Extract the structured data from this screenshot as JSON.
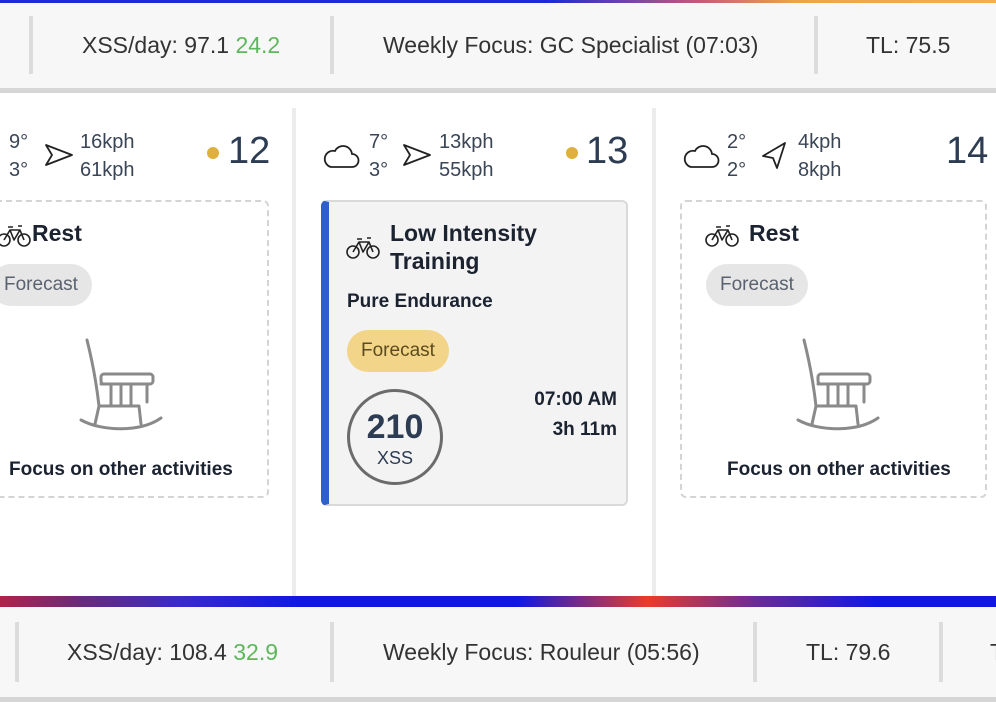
{
  "top_bar": {
    "xss_label": "XSS/day: 97.1",
    "xss_delta": "24.2",
    "weekly_focus": "Weekly Focus: GC Specialist (07:03)",
    "tl": "TL: 75.5"
  },
  "days": [
    {
      "temp_high": "9°",
      "temp_low": "3°",
      "wind_speed": "16kph",
      "wind_gust": "61kph",
      "day_number": "12",
      "card": {
        "type": "rest",
        "title": "Rest",
        "badge": "Forecast",
        "message": "Focus on other activities"
      }
    },
    {
      "temp_high": "7°",
      "temp_low": "3°",
      "wind_speed": "13kph",
      "wind_gust": "55kph",
      "day_number": "13",
      "card": {
        "type": "workout",
        "title_line1": "Low Intensity",
        "title_line2": "Training",
        "subtitle": "Pure Endurance",
        "badge": "Forecast",
        "xss_value": "210",
        "xss_unit": "XSS",
        "start_time": "07:00 AM",
        "duration": "3h 11m",
        "accent_color": "#2f5fc8"
      }
    },
    {
      "temp_high": "2°",
      "temp_low": "2°",
      "wind_speed": "4kph",
      "wind_gust": "8kph",
      "day_number": "14",
      "card": {
        "type": "rest",
        "title": "Rest",
        "badge": "Forecast",
        "message": "Focus on other activities"
      }
    }
  ],
  "bottom_bar": {
    "xss_label": "XSS/day: 108.4",
    "xss_delta": "32.9",
    "weekly_focus": "Weekly Focus: Rouleur (05:56)",
    "tl": "TL: 79.6",
    "overflow_text": "T"
  },
  "icons": {
    "weather": "cloud-icon",
    "wind": "wind-direction-arrow-icon",
    "activity": "bicycle-icon",
    "rest": "rocking-chair-icon"
  },
  "colors": {
    "positive_delta": "#5db75b",
    "forecast_dot": "#e0b03c",
    "workout_accent": "#2f5fc8",
    "forecast_pill_gold": "#f3d58a",
    "forecast_pill_grey": "#e6e6e6"
  }
}
